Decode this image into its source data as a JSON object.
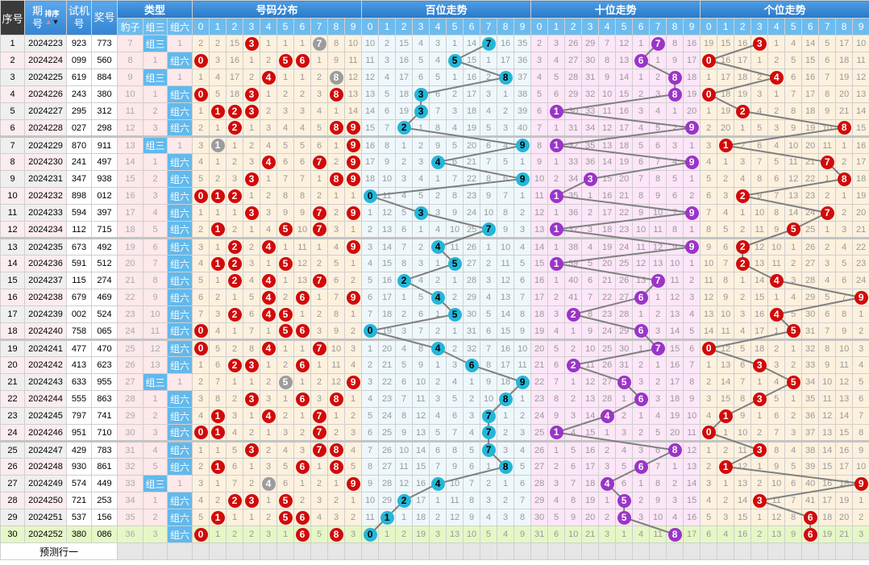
{
  "header": {
    "index": "序号",
    "issue": "期号",
    "sort_label": "排序",
    "trial": "试机号",
    "draw": "奖号",
    "type": "类型",
    "leopard": "豹子",
    "group3": "组三",
    "group6": "组六",
    "distribution": "号码分布",
    "hundreds": "百位走势",
    "tens": "十位走势",
    "units": "个位走势",
    "digits": [
      "0",
      "1",
      "2",
      "3",
      "4",
      "5",
      "6",
      "7",
      "8",
      "9"
    ]
  },
  "footer": {
    "predict_label": "预测行一"
  },
  "colors": {
    "header_blue": "#2b78c6",
    "dist_ball": "#d10a0a",
    "repeat_ball": "#9c9c9c",
    "hundreds_ball": "#24b6d8",
    "tens_ball": "#9b34c8",
    "units_ball": "#d10a0a",
    "type_hit": "#62b9ec"
  },
  "rows": [
    {
      "n": "1",
      "issue": "2024223",
      "trial": "923",
      "draw": "773",
      "type": "组三",
      "leopard": 7,
      "g3": null,
      "g6": 1
    },
    {
      "n": "2",
      "issue": "2024224",
      "trial": "099",
      "draw": "560",
      "type": "组六",
      "leopard": 8,
      "g3": 1,
      "g6": null
    },
    {
      "n": "3",
      "issue": "2024225",
      "trial": "619",
      "draw": "884",
      "type": "组三",
      "leopard": 9,
      "g3": null,
      "g6": 1
    },
    {
      "n": "4",
      "issue": "2024226",
      "trial": "243",
      "draw": "380",
      "type": "组六",
      "leopard": 10,
      "g3": 1,
      "g6": null
    },
    {
      "n": "5",
      "issue": "2024227",
      "trial": "295",
      "draw": "312",
      "type": "组六",
      "leopard": 11,
      "g3": 2,
      "g6": null
    },
    {
      "n": "6",
      "issue": "2024228",
      "trial": "027",
      "draw": "298",
      "type": "组六",
      "leopard": 12,
      "g3": 3,
      "g6": null
    },
    {
      "n": "7",
      "issue": "2024229",
      "trial": "870",
      "draw": "911",
      "type": "组三",
      "leopard": 13,
      "g3": null,
      "g6": 1
    },
    {
      "n": "8",
      "issue": "2024230",
      "trial": "241",
      "draw": "497",
      "type": "组六",
      "leopard": 14,
      "g3": 1,
      "g6": null
    },
    {
      "n": "9",
      "issue": "2024231",
      "trial": "347",
      "draw": "938",
      "type": "组六",
      "leopard": 15,
      "g3": 2,
      "g6": null
    },
    {
      "n": "10",
      "issue": "2024232",
      "trial": "898",
      "draw": "012",
      "type": "组六",
      "leopard": 16,
      "g3": 3,
      "g6": null
    },
    {
      "n": "11",
      "issue": "2024233",
      "trial": "594",
      "draw": "397",
      "type": "组六",
      "leopard": 17,
      "g3": 4,
      "g6": null
    },
    {
      "n": "12",
      "issue": "2024234",
      "trial": "112",
      "draw": "715",
      "type": "组六",
      "leopard": 18,
      "g3": 5,
      "g6": null
    },
    {
      "n": "13",
      "issue": "2024235",
      "trial": "673",
      "draw": "492",
      "type": "组六",
      "leopard": 19,
      "g3": 6,
      "g6": null
    },
    {
      "n": "14",
      "issue": "2024236",
      "trial": "591",
      "draw": "512",
      "type": "组六",
      "leopard": 20,
      "g3": 7,
      "g6": null
    },
    {
      "n": "15",
      "issue": "2024237",
      "trial": "115",
      "draw": "274",
      "type": "组六",
      "leopard": 21,
      "g3": 8,
      "g6": null
    },
    {
      "n": "16",
      "issue": "2024238",
      "trial": "679",
      "draw": "469",
      "type": "组六",
      "leopard": 22,
      "g3": 9,
      "g6": null
    },
    {
      "n": "17",
      "issue": "2024239",
      "trial": "002",
      "draw": "524",
      "type": "组六",
      "leopard": 23,
      "g3": 10,
      "g6": null
    },
    {
      "n": "18",
      "issue": "2024240",
      "trial": "758",
      "draw": "065",
      "type": "组六",
      "leopard": 24,
      "g3": 11,
      "g6": null
    },
    {
      "n": "19",
      "issue": "2024241",
      "trial": "477",
      "draw": "470",
      "type": "组六",
      "leopard": 25,
      "g3": 12,
      "g6": null
    },
    {
      "n": "20",
      "issue": "2024242",
      "trial": "413",
      "draw": "623",
      "type": "组六",
      "leopard": 26,
      "g3": 13,
      "g6": null
    },
    {
      "n": "21",
      "issue": "2024243",
      "trial": "633",
      "draw": "955",
      "type": "组三",
      "leopard": 27,
      "g3": null,
      "g6": 1
    },
    {
      "n": "22",
      "issue": "2024244",
      "trial": "555",
      "draw": "863",
      "type": "组六",
      "leopard": 28,
      "g3": 1,
      "g6": null
    },
    {
      "n": "23",
      "issue": "2024245",
      "trial": "797",
      "draw": "741",
      "type": "组六",
      "leopard": 29,
      "g3": 2,
      "g6": null
    },
    {
      "n": "24",
      "issue": "2024246",
      "trial": "951",
      "draw": "710",
      "type": "组六",
      "leopard": 30,
      "g3": 3,
      "g6": null
    },
    {
      "n": "25",
      "issue": "2024247",
      "trial": "429",
      "draw": "783",
      "type": "组六",
      "leopard": 31,
      "g3": 4,
      "g6": null
    },
    {
      "n": "26",
      "issue": "2024248",
      "trial": "930",
      "draw": "861",
      "type": "组六",
      "leopard": 32,
      "g3": 5,
      "g6": null
    },
    {
      "n": "27",
      "issue": "2024249",
      "trial": "574",
      "draw": "449",
      "type": "组三",
      "leopard": 33,
      "g3": null,
      "g6": 1
    },
    {
      "n": "28",
      "issue": "2024250",
      "trial": "721",
      "draw": "253",
      "type": "组六",
      "leopard": 34,
      "g3": 1,
      "g6": null
    },
    {
      "n": "29",
      "issue": "2024251",
      "trial": "537",
      "draw": "156",
      "type": "组六",
      "leopard": 35,
      "g3": 2,
      "g6": null
    },
    {
      "n": "30",
      "issue": "2024252",
      "trial": "380",
      "draw": "086",
      "type": "组六",
      "leopard": 36,
      "g3": 3,
      "g6": null
    }
  ],
  "distribution": [
    [
      2,
      2,
      15,
      null,
      1,
      1,
      1,
      null,
      8,
      10
    ],
    [
      null,
      3,
      16,
      1,
      2,
      null,
      null,
      1,
      9,
      11
    ],
    [
      1,
      4,
      17,
      2,
      null,
      1,
      1,
      2,
      null,
      12
    ],
    [
      null,
      5,
      18,
      null,
      1,
      2,
      2,
      3,
      null,
      13
    ],
    [
      1,
      null,
      null,
      null,
      2,
      3,
      3,
      4,
      1,
      14
    ],
    [
      2,
      1,
      null,
      1,
      3,
      4,
      4,
      5,
      null,
      null
    ],
    [
      3,
      null,
      1,
      2,
      4,
      5,
      5,
      6,
      1,
      null
    ],
    [
      4,
      1,
      2,
      3,
      null,
      6,
      6,
      null,
      2,
      null
    ],
    [
      5,
      2,
      3,
      null,
      1,
      7,
      7,
      1,
      null,
      null
    ],
    [
      null,
      null,
      null,
      1,
      2,
      8,
      8,
      2,
      1,
      1
    ],
    [
      1,
      1,
      1,
      null,
      3,
      9,
      9,
      null,
      2,
      null
    ],
    [
      2,
      null,
      2,
      1,
      4,
      null,
      10,
      null,
      3,
      1
    ],
    [
      3,
      1,
      null,
      2,
      null,
      1,
      11,
      1,
      4,
      null
    ],
    [
      4,
      null,
      null,
      3,
      1,
      null,
      12,
      2,
      5,
      1
    ],
    [
      5,
      1,
      null,
      4,
      null,
      1,
      13,
      null,
      6,
      2
    ],
    [
      6,
      2,
      1,
      5,
      null,
      2,
      null,
      1,
      7,
      null
    ],
    [
      7,
      3,
      null,
      6,
      null,
      null,
      1,
      2,
      8,
      1
    ],
    [
      null,
      4,
      1,
      7,
      1,
      null,
      null,
      3,
      9,
      2
    ],
    [
      null,
      5,
      2,
      8,
      null,
      1,
      1,
      null,
      10,
      3
    ],
    [
      1,
      6,
      null,
      null,
      1,
      2,
      null,
      1,
      11,
      4
    ],
    [
      2,
      7,
      1,
      1,
      2,
      null,
      1,
      2,
      12,
      null
    ],
    [
      3,
      8,
      2,
      null,
      3,
      1,
      null,
      3,
      null,
      1
    ],
    [
      4,
      null,
      3,
      1,
      null,
      2,
      1,
      null,
      1,
      2
    ],
    [
      null,
      null,
      4,
      2,
      1,
      3,
      2,
      null,
      2,
      3
    ],
    [
      1,
      1,
      5,
      null,
      2,
      4,
      3,
      null,
      null,
      4
    ],
    [
      2,
      null,
      6,
      1,
      3,
      5,
      null,
      1,
      null,
      5
    ],
    [
      3,
      1,
      7,
      2,
      null,
      6,
      1,
      2,
      1,
      null
    ],
    [
      4,
      2,
      null,
      null,
      1,
      null,
      2,
      3,
      2,
      1
    ],
    [
      5,
      null,
      1,
      1,
      2,
      null,
      null,
      4,
      3,
      2
    ],
    [
      null,
      1,
      2,
      2,
      3,
      1,
      null,
      5,
      null,
      3
    ]
  ],
  "hundreds": [
    [
      10,
      2,
      15,
      4,
      3,
      1,
      14,
      null,
      16,
      35
    ],
    [
      11,
      3,
      16,
      5,
      4,
      null,
      15,
      1,
      17,
      36
    ],
    [
      12,
      4,
      17,
      6,
      5,
      1,
      16,
      2,
      null,
      37
    ],
    [
      13,
      5,
      18,
      null,
      6,
      2,
      17,
      3,
      1,
      38
    ],
    [
      14,
      6,
      19,
      null,
      7,
      3,
      18,
      4,
      2,
      39
    ],
    [
      15,
      7,
      null,
      1,
      8,
      4,
      19,
      5,
      3,
      40
    ],
    [
      16,
      8,
      1,
      2,
      9,
      5,
      20,
      6,
      4,
      null
    ],
    [
      17,
      9,
      2,
      3,
      null,
      6,
      21,
      7,
      5,
      1
    ],
    [
      18,
      10,
      3,
      4,
      1,
      7,
      22,
      8,
      6,
      null
    ],
    [
      null,
      11,
      4,
      5,
      2,
      8,
      23,
      9,
      7,
      1
    ],
    [
      1,
      12,
      5,
      null,
      3,
      9,
      24,
      10,
      8,
      2
    ],
    [
      2,
      13,
      6,
      1,
      4,
      10,
      25,
      null,
      9,
      3
    ],
    [
      3,
      14,
      7,
      2,
      null,
      11,
      26,
      1,
      10,
      4
    ],
    [
      4,
      15,
      8,
      3,
      1,
      null,
      27,
      2,
      11,
      5
    ],
    [
      5,
      16,
      null,
      4,
      2,
      1,
      28,
      3,
      12,
      6
    ],
    [
      6,
      17,
      1,
      5,
      null,
      2,
      29,
      4,
      13,
      7
    ],
    [
      7,
      18,
      2,
      6,
      1,
      null,
      30,
      5,
      14,
      8
    ],
    [
      null,
      19,
      3,
      7,
      2,
      1,
      31,
      6,
      15,
      9
    ],
    [
      1,
      20,
      4,
      8,
      null,
      2,
      32,
      7,
      16,
      10
    ],
    [
      2,
      21,
      5,
      9,
      1,
      3,
      null,
      8,
      17,
      11
    ],
    [
      3,
      22,
      6,
      10,
      2,
      4,
      1,
      9,
      18,
      null
    ],
    [
      4,
      23,
      7,
      11,
      3,
      5,
      2,
      10,
      null,
      1
    ],
    [
      5,
      24,
      8,
      12,
      4,
      6,
      3,
      null,
      1,
      2
    ],
    [
      6,
      25,
      9,
      13,
      5,
      7,
      4,
      null,
      2,
      3
    ],
    [
      7,
      26,
      10,
      14,
      6,
      8,
      5,
      null,
      3,
      4
    ],
    [
      8,
      27,
      11,
      15,
      7,
      9,
      6,
      1,
      null,
      5
    ],
    [
      9,
      28,
      12,
      16,
      null,
      10,
      7,
      2,
      1,
      6
    ],
    [
      10,
      29,
      null,
      17,
      1,
      11,
      8,
      3,
      2,
      7
    ],
    [
      11,
      null,
      1,
      18,
      2,
      12,
      9,
      4,
      3,
      8
    ],
    [
      null,
      1,
      2,
      19,
      3,
      13,
      10,
      5,
      4,
      9
    ]
  ],
  "tens": [
    [
      2,
      3,
      26,
      29,
      7,
      12,
      1,
      null,
      8,
      16
    ],
    [
      3,
      4,
      27,
      30,
      8,
      13,
      null,
      1,
      9,
      17
    ],
    [
      4,
      5,
      28,
      31,
      9,
      14,
      1,
      2,
      null,
      18
    ],
    [
      5,
      6,
      29,
      32,
      10,
      15,
      2,
      3,
      null,
      19
    ],
    [
      6,
      null,
      30,
      33,
      11,
      16,
      3,
      4,
      1,
      20
    ],
    [
      7,
      1,
      31,
      34,
      12,
      17,
      4,
      5,
      2,
      null
    ],
    [
      8,
      null,
      32,
      35,
      13,
      18,
      5,
      6,
      3,
      1
    ],
    [
      9,
      1,
      33,
      36,
      14,
      19,
      6,
      7,
      4,
      null
    ],
    [
      10,
      2,
      34,
      null,
      15,
      20,
      7,
      8,
      5,
      1
    ],
    [
      11,
      null,
      35,
      1,
      16,
      21,
      8,
      9,
      6,
      2
    ],
    [
      12,
      1,
      36,
      2,
      17,
      22,
      9,
      10,
      7,
      null
    ],
    [
      13,
      null,
      37,
      3,
      18,
      23,
      10,
      11,
      8,
      1
    ],
    [
      14,
      1,
      38,
      4,
      19,
      24,
      11,
      12,
      9,
      null
    ],
    [
      15,
      null,
      39,
      5,
      20,
      25,
      12,
      13,
      10,
      1
    ],
    [
      16,
      1,
      40,
      6,
      21,
      26,
      13,
      null,
      11,
      2
    ],
    [
      17,
      2,
      41,
      7,
      22,
      27,
      null,
      1,
      12,
      3
    ],
    [
      18,
      3,
      null,
      8,
      23,
      28,
      1,
      2,
      13,
      4
    ],
    [
      19,
      4,
      1,
      9,
      24,
      29,
      null,
      3,
      14,
      5
    ],
    [
      20,
      5,
      2,
      10,
      25,
      30,
      1,
      null,
      15,
      6
    ],
    [
      21,
      6,
      null,
      11,
      26,
      31,
      2,
      1,
      16,
      7
    ],
    [
      22,
      7,
      1,
      12,
      27,
      null,
      3,
      2,
      17,
      8
    ],
    [
      23,
      8,
      2,
      13,
      28,
      1,
      null,
      3,
      18,
      9
    ],
    [
      24,
      9,
      3,
      14,
      null,
      2,
      1,
      4,
      19,
      10
    ],
    [
      25,
      null,
      4,
      15,
      1,
      3,
      2,
      5,
      20,
      11
    ],
    [
      26,
      1,
      5,
      16,
      2,
      4,
      3,
      6,
      null,
      12
    ],
    [
      27,
      2,
      6,
      17,
      3,
      5,
      null,
      7,
      1,
      13
    ],
    [
      28,
      3,
      7,
      18,
      null,
      6,
      1,
      8,
      2,
      14
    ],
    [
      29,
      4,
      8,
      19,
      1,
      null,
      2,
      9,
      3,
      15
    ],
    [
      30,
      5,
      9,
      20,
      2,
      null,
      3,
      10,
      4,
      16
    ],
    [
      31,
      6,
      10,
      21,
      3,
      1,
      4,
      11,
      null,
      17
    ]
  ],
  "units": [
    [
      19,
      15,
      16,
      null,
      1,
      4,
      14,
      5,
      17,
      10
    ],
    [
      null,
      16,
      17,
      1,
      2,
      5,
      15,
      6,
      18,
      11
    ],
    [
      1,
      17,
      18,
      2,
      null,
      6,
      16,
      7,
      19,
      12
    ],
    [
      null,
      18,
      19,
      3,
      1,
      7,
      17,
      8,
      20,
      13
    ],
    [
      1,
      19,
      null,
      4,
      2,
      8,
      18,
      9,
      21,
      14
    ],
    [
      2,
      20,
      1,
      5,
      3,
      9,
      19,
      10,
      null,
      15
    ],
    [
      3,
      null,
      2,
      6,
      4,
      10,
      20,
      11,
      1,
      16
    ],
    [
      4,
      1,
      3,
      7,
      5,
      11,
      21,
      null,
      2,
      17
    ],
    [
      5,
      2,
      4,
      8,
      6,
      12,
      22,
      1,
      null,
      18
    ],
    [
      6,
      3,
      null,
      9,
      7,
      13,
      23,
      2,
      1,
      19
    ],
    [
      7,
      4,
      1,
      10,
      8,
      14,
      24,
      null,
      2,
      20
    ],
    [
      8,
      5,
      2,
      11,
      9,
      null,
      25,
      1,
      3,
      21
    ],
    [
      9,
      6,
      null,
      12,
      10,
      1,
      26,
      2,
      4,
      22
    ],
    [
      10,
      7,
      null,
      13,
      11,
      2,
      27,
      3,
      5,
      23
    ],
    [
      11,
      8,
      1,
      14,
      null,
      3,
      28,
      4,
      6,
      24
    ],
    [
      12,
      9,
      2,
      15,
      1,
      4,
      29,
      5,
      7,
      null
    ],
    [
      13,
      10,
      3,
      16,
      null,
      5,
      30,
      6,
      8,
      1
    ],
    [
      14,
      11,
      4,
      17,
      1,
      null,
      31,
      7,
      9,
      2
    ],
    [
      null,
      12,
      5,
      18,
      2,
      1,
      32,
      8,
      10,
      3
    ],
    [
      1,
      13,
      6,
      null,
      3,
      2,
      33,
      9,
      11,
      4
    ],
    [
      2,
      14,
      7,
      1,
      4,
      null,
      34,
      10,
      12,
      5
    ],
    [
      3,
      15,
      8,
      null,
      5,
      1,
      35,
      11,
      13,
      6
    ],
    [
      4,
      null,
      9,
      1,
      6,
      2,
      36,
      12,
      14,
      7
    ],
    [
      null,
      1,
      10,
      2,
      7,
      3,
      37,
      13,
      15,
      8
    ],
    [
      1,
      2,
      11,
      null,
      8,
      4,
      38,
      14,
      16,
      9
    ],
    [
      2,
      null,
      12,
      1,
      9,
      5,
      39,
      15,
      17,
      10
    ],
    [
      3,
      1,
      13,
      2,
      10,
      6,
      40,
      16,
      18,
      null
    ],
    [
      4,
      2,
      14,
      null,
      11,
      7,
      41,
      17,
      19,
      1
    ],
    [
      5,
      3,
      15,
      1,
      12,
      8,
      null,
      18,
      20,
      2
    ],
    [
      6,
      4,
      16,
      2,
      13,
      9,
      null,
      19,
      21,
      3
    ]
  ]
}
